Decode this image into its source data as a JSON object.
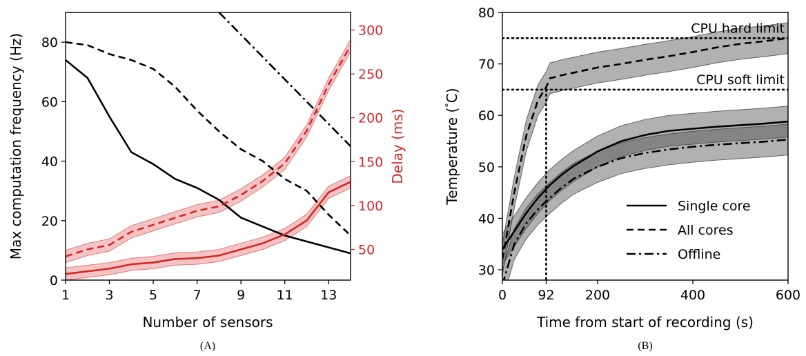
{
  "chart_data": [
    {
      "type": "line",
      "caption": "(A)",
      "xlabel": "Number of sensors",
      "ylabel": "Max computation frequency (Hz)",
      "ylabel_right": "Delay (ms)",
      "xlim": [
        1,
        14
      ],
      "ylim": [
        0,
        90
      ],
      "ylim_right": [
        15,
        320
      ],
      "xticks": [
        1,
        3,
        5,
        7,
        9,
        11,
        13
      ],
      "yticks": [
        0,
        20,
        40,
        60,
        80
      ],
      "yticks_right": [
        50,
        100,
        150,
        200,
        250,
        300
      ],
      "grid": false,
      "right_axis_color": "#d62728",
      "x": [
        1,
        2,
        3,
        4,
        5,
        6,
        7,
        8,
        9,
        10,
        11,
        12,
        13,
        14
      ],
      "series": [
        {
          "axis": "left",
          "style": "solid",
          "color": "#000000",
          "values": [
            74,
            68,
            55,
            43,
            39,
            34,
            31,
            27,
            21,
            18,
            15,
            13,
            11,
            9
          ]
        },
        {
          "axis": "left",
          "style": "dashed",
          "color": "#000000",
          "values": [
            80,
            79,
            76,
            74,
            71,
            65,
            57,
            50,
            44,
            40,
            34,
            30,
            22,
            15
          ]
        },
        {
          "axis": "left",
          "style": "dashdot",
          "color": "#000000",
          "x": [
            8,
            14
          ],
          "values": [
            90,
            45
          ]
        },
        {
          "axis": "right",
          "style": "dashed",
          "color": "#d62728",
          "values": [
            42,
            50,
            55,
            70,
            78,
            86,
            94,
            99,
            112,
            128,
            148,
            185,
            238,
            282
          ],
          "band": 7
        },
        {
          "axis": "right",
          "style": "solid",
          "color": "#d62728",
          "values": [
            22,
            25,
            28,
            33,
            35,
            39,
            40,
            43,
            50,
            57,
            67,
            83,
            115,
            127
          ],
          "band": 7
        }
      ]
    },
    {
      "type": "line",
      "caption": "(B)",
      "xlabel": "Time from start of recording (s)",
      "ylabel": "Temperature ($^\\circ$C)",
      "ylabel_main": "Temperature (",
      "ylabel_deg": "°",
      "ylabel_tail": "C)",
      "xlim": [
        0,
        600
      ],
      "ylim": [
        28,
        80
      ],
      "xticks": [
        0,
        92,
        200,
        400,
        600
      ],
      "yticks": [
        30,
        40,
        50,
        60,
        70,
        80
      ],
      "grid": false,
      "hlines": [
        {
          "y": 75,
          "label": "CPU hard limit"
        },
        {
          "y": 65,
          "label": "CPU soft limit"
        }
      ],
      "vline": {
        "x": 92,
        "ymax": 65
      },
      "legend": {
        "placement": "bottom-right",
        "entries": [
          "Single core",
          "All cores",
          "Offline"
        ]
      },
      "series": [
        {
          "name": "Single core",
          "style": "solid",
          "x": [
            0,
            25,
            50,
            75,
            100,
            125,
            150,
            200,
            250,
            300,
            350,
            400,
            450,
            500,
            550,
            600
          ],
          "values": [
            34,
            37.5,
            41,
            44,
            46.5,
            48.5,
            50.2,
            53,
            55,
            56.2,
            57,
            57.4,
            57.8,
            58.1,
            58.4,
            58.8
          ],
          "band": 3
        },
        {
          "name": "All cores",
          "style": "dashed",
          "x": [
            0,
            25,
            50,
            75,
            92,
            100,
            125,
            150,
            200,
            250,
            300,
            350,
            400,
            450,
            500,
            550,
            600
          ],
          "values": [
            32,
            45,
            56,
            63,
            65.5,
            67.2,
            67.8,
            68.3,
            69.3,
            70,
            70.8,
            71.5,
            72.3,
            73.2,
            73.9,
            74.4,
            75
          ],
          "band": 3
        },
        {
          "name": "Offline",
          "style": "dashdot",
          "x": [
            0,
            25,
            50,
            75,
            100,
            125,
            150,
            200,
            250,
            300,
            350,
            400,
            450,
            500,
            550,
            600
          ],
          "values": [
            27,
            35,
            39,
            41.8,
            44,
            46,
            47.7,
            50,
            51.7,
            52.7,
            53.4,
            53.9,
            54.3,
            54.6,
            54.9,
            55.3
          ],
          "band": 3
        }
      ]
    }
  ]
}
